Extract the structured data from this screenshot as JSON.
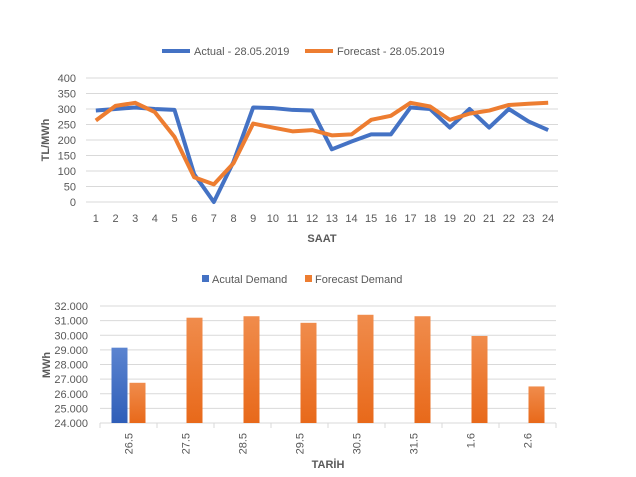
{
  "chart_data": [
    {
      "type": "line",
      "x": [
        1,
        2,
        3,
        4,
        5,
        6,
        7,
        8,
        9,
        10,
        11,
        12,
        13,
        14,
        15,
        16,
        17,
        18,
        19,
        20,
        21,
        22,
        23,
        24
      ],
      "series": [
        {
          "name": "Actual - 28.05.2019",
          "color": "#4472C4",
          "values": [
            295,
            300,
            305,
            300,
            297,
            90,
            0,
            130,
            305,
            303,
            297,
            295,
            170,
            195,
            218,
            218,
            305,
            300,
            240,
            300,
            240,
            300,
            260,
            232
          ]
        },
        {
          "name": "Forecast - 28.05.2019",
          "color": "#ED7D31",
          "values": [
            263,
            310,
            320,
            290,
            210,
            80,
            57,
            125,
            253,
            240,
            228,
            232,
            215,
            218,
            265,
            278,
            320,
            308,
            265,
            285,
            295,
            313,
            317,
            320
          ]
        }
      ],
      "xlabel": "SAAT",
      "ylabel": "TL/MWh",
      "ylim": [
        0,
        400
      ],
      "yticks": [
        "0",
        "50",
        "100",
        "150",
        "200",
        "250",
        "300",
        "350",
        "400"
      ],
      "grid": true,
      "legend": "top"
    },
    {
      "type": "bar",
      "categories": [
        "26.5",
        "27.5",
        "28.5",
        "29.5",
        "30.5",
        "31.5",
        "1.6",
        "2.6"
      ],
      "series": [
        {
          "name": "Acutal Demand",
          "color": "#4472C4",
          "values": [
            29150,
            null,
            null,
            null,
            null,
            null,
            null,
            null
          ]
        },
        {
          "name": "Forecast Demand",
          "color": "#ED7D31",
          "values": [
            26750,
            31200,
            31300,
            30850,
            31400,
            31300,
            29950,
            26500
          ]
        }
      ],
      "xlabel": "TARİH",
      "ylabel": "MWh",
      "ylim": [
        24000,
        32000
      ],
      "yticks": [
        "24.000",
        "25.000",
        "26.000",
        "27.000",
        "28.000",
        "29.000",
        "30.000",
        "31.000",
        "32.000"
      ],
      "grid": true,
      "legend": "top"
    }
  ]
}
